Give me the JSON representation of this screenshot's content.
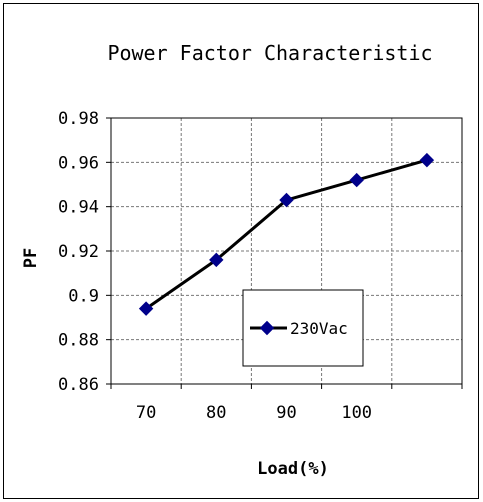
{
  "chart_data": {
    "type": "line",
    "title": "Power Factor Characteristic",
    "xlabel": "Load(%)",
    "ylabel": "PF",
    "categories": [
      "70",
      "80",
      "90",
      "100",
      ""
    ],
    "series": [
      {
        "name": "230Vac",
        "values": [
          0.894,
          0.916,
          0.943,
          0.952,
          0.961
        ],
        "color": "#00008B"
      }
    ],
    "ylim": [
      0.86,
      0.98
    ],
    "yticks": [
      "0.98",
      "0.96",
      "0.94",
      "0.92",
      "0.9",
      "0.88",
      "0.86"
    ],
    "grid": true,
    "legend_position": "bottom-right-inside",
    "line_color": "#000000",
    "marker": "diamond"
  }
}
